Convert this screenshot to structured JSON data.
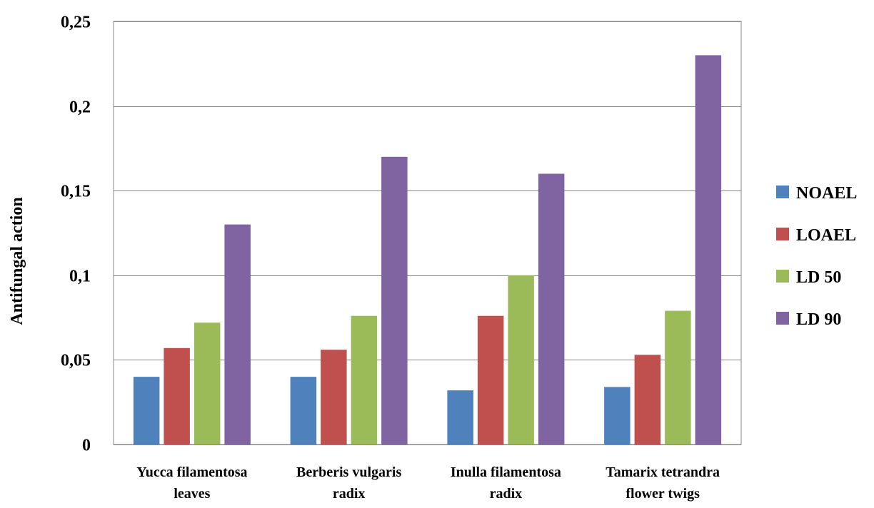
{
  "chart_data": {
    "type": "bar",
    "title": "",
    "xlabel": "",
    "ylabel": "Antifungal action",
    "ylim": [
      0,
      0.25
    ],
    "yticks": [
      {
        "value": 0,
        "label": "0"
      },
      {
        "value": 0.05,
        "label": "0,05"
      },
      {
        "value": 0.1,
        "label": "0,1"
      },
      {
        "value": 0.15,
        "label": "0,15"
      },
      {
        "value": 0.2,
        "label": "0,2"
      },
      {
        "value": 0.25,
        "label": "0,25"
      }
    ],
    "grid": true,
    "legend_position": "right",
    "categories": [
      [
        "Yucca filamentosa",
        "leaves"
      ],
      [
        "Berberis vulgaris",
        "radix"
      ],
      [
        "Inulla filamentosa",
        "radix"
      ],
      [
        "Tamarix tetrandra",
        "flower twigs"
      ]
    ],
    "series": [
      {
        "name": "NOAEL",
        "color": "#4F81BD",
        "values": [
          0.04,
          0.04,
          0.032,
          0.034
        ]
      },
      {
        "name": "LOAEL",
        "color": "#C0504D",
        "values": [
          0.057,
          0.056,
          0.076,
          0.053
        ]
      },
      {
        "name": "LD 50",
        "color": "#9BBB59",
        "values": [
          0.072,
          0.076,
          0.1,
          0.079
        ]
      },
      {
        "name": "LD 90",
        "color": "#8064A2",
        "values": [
          0.13,
          0.17,
          0.16,
          0.23
        ]
      }
    ]
  }
}
